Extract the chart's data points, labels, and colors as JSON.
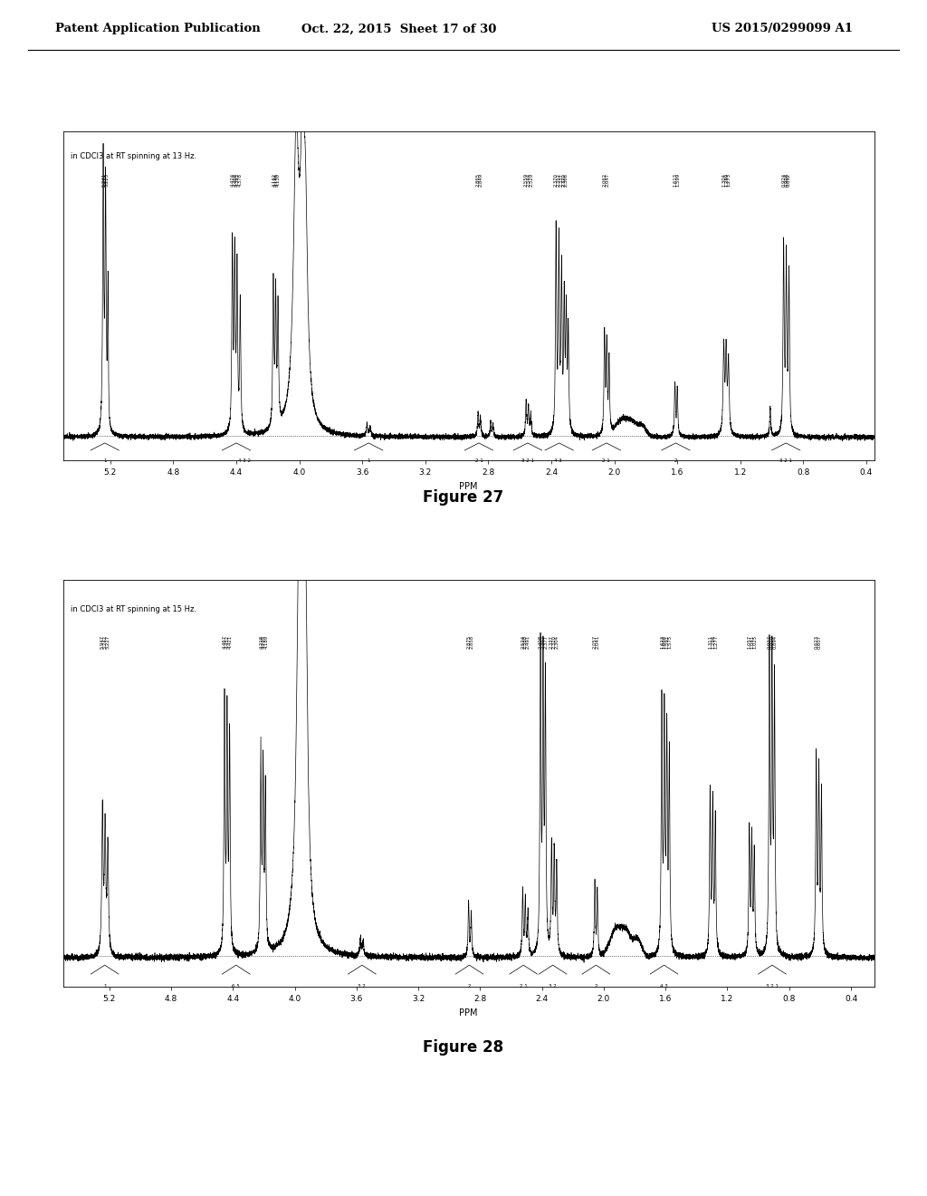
{
  "page_header_left": "Patent Application Publication",
  "page_header_center": "Oct. 22, 2015  Sheet 17 of 30",
  "page_header_right": "US 2015/0299099 A1",
  "fig27_label": "in CDCl3 at RT spinning at 13 Hz.",
  "fig27_caption": "Figure 27",
  "fig28_label": "in CDCl3 at RT spinning at 15 Hz.",
  "fig28_caption": "Figure 28",
  "background_color": "#ffffff",
  "spectrum_color": "#000000"
}
